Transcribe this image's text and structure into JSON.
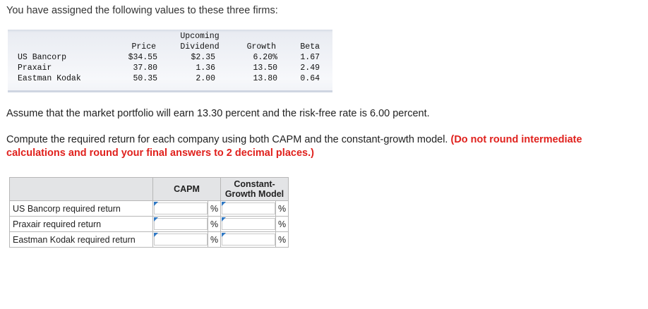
{
  "intro": "You have assigned the following values to these three firms:",
  "firm_table": {
    "headers": {
      "price": "Price",
      "dividend_l1": "Upcoming",
      "dividend_l2": "Dividend",
      "growth": "Growth",
      "beta": "Beta"
    },
    "rows": [
      {
        "name": "US Bancorp",
        "price": "$34.55",
        "dividend": "$2.35",
        "growth": "6.20%",
        "beta": "1.67"
      },
      {
        "name": "Praxair",
        "price": "37.80",
        "dividend": "1.36",
        "growth": "13.50",
        "beta": "2.49"
      },
      {
        "name": "Eastman Kodak",
        "price": "50.35",
        "dividend": "2.00",
        "growth": "13.80",
        "beta": "0.64"
      }
    ]
  },
  "assume_text": "Assume that the market portfolio will earn 13.30 percent and the risk-free rate is 6.00 percent.",
  "compute_text": "Compute the required return for each company using both CAPM and the constant-growth model.",
  "compute_note": "(Do not round intermediate calculations and round your final answers to 2 decimal places.)",
  "answer_grid": {
    "col_capm": "CAPM",
    "col_cg_l1": "Constant-",
    "col_cg_l2": "Growth Model",
    "unit": "%",
    "rows": [
      {
        "label": "US Bancorp required return",
        "capm": "",
        "cg": ""
      },
      {
        "label": "Praxair required return",
        "capm": "",
        "cg": ""
      },
      {
        "label": "Eastman Kodak required return",
        "capm": "",
        "cg": ""
      }
    ]
  }
}
